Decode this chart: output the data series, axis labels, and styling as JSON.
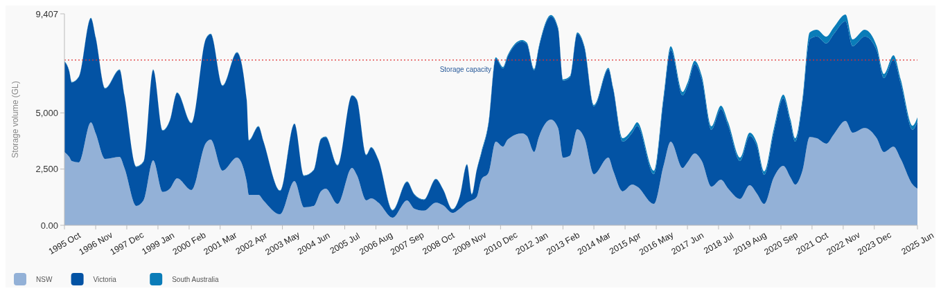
{
  "chart_data": {
    "type": "area",
    "stacked": true,
    "ylabel": "Storage volume (GL)",
    "x": [
      "1995-10",
      "1995-12",
      "1996-01",
      "1996-04",
      "1996-09",
      "1996-11",
      "1997-03",
      "1997-09",
      "1997-11",
      "1998-04",
      "1998-07",
      "1998-11",
      "1999-03",
      "1999-06",
      "1999-09",
      "2000-03",
      "2000-09",
      "2000-11",
      "2001-04",
      "2001-10",
      "2002-02",
      "2002-03",
      "2002-07",
      "2002-09",
      "2003-04",
      "2003-10",
      "2004-02",
      "2004-06",
      "2004-09",
      "2004-11",
      "2005-04",
      "2005-10",
      "2005-12",
      "2006-04",
      "2006-06",
      "2006-09",
      "2007-03",
      "2007-09",
      "2007-12",
      "2008-04",
      "2008-09",
      "2008-12",
      "2009-04",
      "2009-07",
      "2009-10",
      "2009-12",
      "2010-02",
      "2010-04",
      "2010-07",
      "2010-10",
      "2011-01",
      "2011-03",
      "2011-09",
      "2011-11",
      "2012-02",
      "2012-04",
      "2012-09",
      "2012-12",
      "2013-02",
      "2013-05",
      "2013-08",
      "2013-11",
      "2014-03",
      "2014-09",
      "2014-11",
      "2015-03",
      "2015-07",
      "2015-09",
      "2016-04",
      "2016-08",
      "2016-11",
      "2017-04",
      "2017-06",
      "2017-09",
      "2017-12",
      "2018-04",
      "2018-08",
      "2018-11",
      "2019-04",
      "2019-08",
      "2019-11",
      "2020-02",
      "2020-06",
      "2020-10",
      "2021-01",
      "2021-03",
      "2021-06",
      "2021-09",
      "2021-12",
      "2022-04",
      "2022-07",
      "2022-12",
      "2023-03",
      "2023-08",
      "2024-01",
      "2024-04",
      "2024-08",
      "2024-11",
      "2025-04",
      "2025-06"
    ],
    "series": [
      {
        "name": "NSW",
        "color": "#93b1d7",
        "values": [
          3260,
          3040,
          2860,
          2800,
          4580,
          4090,
          2950,
          3040,
          2550,
          860,
          1110,
          2890,
          1480,
          1630,
          2090,
          1570,
          3660,
          3810,
          2430,
          3010,
          1940,
          1350,
          1350,
          1110,
          490,
          1970,
          800,
          860,
          1510,
          1630,
          950,
          2550,
          2240,
          1110,
          1200,
          1010,
          340,
          1110,
          740,
          650,
          1010,
          890,
          550,
          740,
          1010,
          1110,
          1260,
          2030,
          2340,
          3720,
          3500,
          3810,
          4090,
          3970,
          3260,
          3930,
          4700,
          4330,
          3010,
          3100,
          4270,
          3870,
          2270,
          3010,
          2430,
          1510,
          1810,
          1720,
          950,
          2640,
          3720,
          2550,
          2800,
          3200,
          2860,
          1720,
          2030,
          1630,
          1170,
          1780,
          1410,
          950,
          2120,
          2640,
          2120,
          1810,
          2430,
          3930,
          3870,
          3630,
          4030,
          4640,
          4120,
          4330,
          3870,
          3260,
          3500,
          2950,
          1810,
          1630
        ]
      },
      {
        "name": "Victoria",
        "color": "#0353a4",
        "values": [
          4020,
          3810,
          3490,
          3800,
          4630,
          4260,
          3130,
          3870,
          3220,
          1740,
          1710,
          4020,
          2730,
          3030,
          3800,
          2970,
          4630,
          4690,
          3770,
          4670,
          3640,
          2420,
          3040,
          2630,
          1040,
          2540,
          1400,
          1590,
          2320,
          2300,
          1710,
          3220,
          3340,
          2010,
          2260,
          1900,
          320,
          820,
          630,
          480,
          1040,
          700,
          150,
          540,
          1690,
          260,
          1190,
          1170,
          2180,
          3690,
          3480,
          3690,
          4090,
          4090,
          3630,
          3970,
          4590,
          4400,
          3420,
          3480,
          4250,
          4030,
          3020,
          3930,
          3630,
          2210,
          2310,
          2710,
          1330,
          2930,
          4090,
          3230,
          3380,
          3970,
          3630,
          2530,
          3140,
          2800,
          1690,
          2190,
          2100,
          1300,
          2000,
          3020,
          2430,
          1910,
          3040,
          4350,
          4530,
          4460,
          4460,
          4440,
          3850,
          4070,
          3910,
          3290,
          3880,
          3360,
          2440,
          2990
        ]
      },
      {
        "name": "South Australia",
        "color": "#0a7cb8",
        "values": [
          20,
          20,
          20,
          20,
          20,
          20,
          20,
          20,
          20,
          20,
          20,
          20,
          20,
          20,
          20,
          20,
          20,
          20,
          20,
          20,
          20,
          20,
          20,
          20,
          20,
          20,
          20,
          20,
          20,
          20,
          20,
          20,
          20,
          20,
          20,
          20,
          20,
          20,
          20,
          20,
          20,
          20,
          20,
          20,
          20,
          20,
          20,
          60,
          60,
          60,
          60,
          60,
          60,
          60,
          60,
          60,
          60,
          60,
          60,
          60,
          60,
          60,
          60,
          60,
          60,
          150,
          150,
          150,
          150,
          150,
          150,
          150,
          150,
          150,
          150,
          150,
          150,
          150,
          150,
          150,
          150,
          150,
          150,
          150,
          150,
          150,
          150,
          300,
          300,
          300,
          300,
          300,
          300,
          300,
          180,
          180,
          180,
          180,
          180,
          180
        ]
      }
    ],
    "xlim": [
      "1995-10",
      "2025-06"
    ],
    "xticks": [
      {
        "value": "1995-10",
        "label": "1995 Oct"
      },
      {
        "value": "1996-11",
        "label": "1996 Nov"
      },
      {
        "value": "1997-12",
        "label": "1997 Dec"
      },
      {
        "value": "1999-01",
        "label": "1999 Jan"
      },
      {
        "value": "2000-02",
        "label": "2000 Feb"
      },
      {
        "value": "2001-03",
        "label": "2001 Mar"
      },
      {
        "value": "2002-04",
        "label": "2002 Apr"
      },
      {
        "value": "2003-05",
        "label": "2003 May"
      },
      {
        "value": "2004-06",
        "label": "2004 Jun"
      },
      {
        "value": "2005-07",
        "label": "2005 Jul"
      },
      {
        "value": "2006-08",
        "label": "2006 Aug"
      },
      {
        "value": "2007-09",
        "label": "2007 Sep"
      },
      {
        "value": "2008-10",
        "label": "2008 Oct"
      },
      {
        "value": "2009-11",
        "label": "2009 Nov"
      },
      {
        "value": "2010-12",
        "label": "2010 Dec"
      },
      {
        "value": "2012-01",
        "label": "2012 Jan"
      },
      {
        "value": "2013-02",
        "label": "2013 Feb"
      },
      {
        "value": "2014-03",
        "label": "2014 Mar"
      },
      {
        "value": "2015-04",
        "label": "2015 Apr"
      },
      {
        "value": "2016-05",
        "label": "2016 May"
      },
      {
        "value": "2017-06",
        "label": "2017 Jun"
      },
      {
        "value": "2018-07",
        "label": "2018 Jul"
      },
      {
        "value": "2019-08",
        "label": "2019 Aug"
      },
      {
        "value": "2020-09",
        "label": "2020 Sep"
      },
      {
        "value": "2021-10",
        "label": "2021 Oct"
      },
      {
        "value": "2022-11",
        "label": "2022 Nov"
      },
      {
        "value": "2023-12",
        "label": "2023 Dec"
      },
      {
        "value": "2025-06",
        "label": "2025 Jun"
      }
    ],
    "ylim": [
      0,
      9407
    ],
    "yticks": [
      {
        "value": 0,
        "label": "0.00"
      },
      {
        "value": 2500,
        "label": "2,500"
      },
      {
        "value": 5000,
        "label": "5,000"
      },
      {
        "value": 9407,
        "label": "9,407"
      }
    ],
    "ref_lines": [
      {
        "axis": "y",
        "value": 7350,
        "label": "Storage capacity",
        "color": "#e03030",
        "line_style": "dotted"
      }
    ],
    "grid": false,
    "legend": "bottom left"
  }
}
